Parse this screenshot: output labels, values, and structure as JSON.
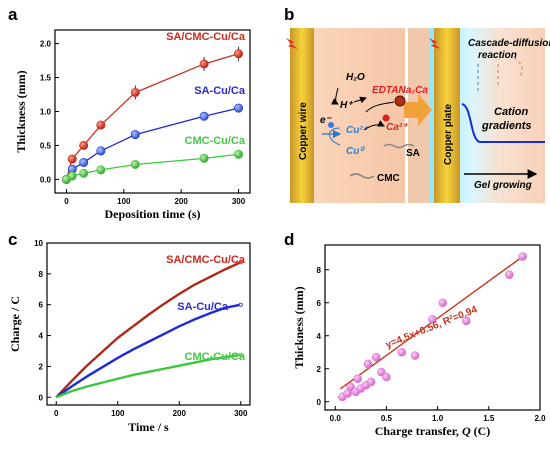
{
  "panels": {
    "a": "a",
    "b": "b",
    "c": "c",
    "d": "d"
  },
  "chart_data": [
    {
      "panel": "a",
      "type": "scatter",
      "xlabel": "Deposition time (s)",
      "ylabel": "Thickness (mm)",
      "xlim": [
        -20,
        320
      ],
      "ylim": [
        -0.2,
        2.2
      ],
      "xticks": [
        0,
        100,
        200,
        300
      ],
      "yticks": [
        0.0,
        0.5,
        1.0,
        1.5,
        2.0
      ],
      "yticklabels": [
        "0.0",
        "0.5",
        "1.0",
        "1.5",
        "2.0"
      ],
      "series": [
        {
          "name": "SA/CMC-Cu/Ca",
          "color": "#c8321e",
          "annotation_color": "#d0281e",
          "x": [
            0,
            10,
            30,
            60,
            120,
            240,
            300
          ],
          "y": [
            0.0,
            0.3,
            0.5,
            0.8,
            1.28,
            1.7,
            1.85
          ]
        },
        {
          "name": "SA-Cu/Ca",
          "color": "#1a2bd6",
          "annotation_color": "#2a2ad8",
          "x": [
            0,
            10,
            30,
            60,
            120,
            240,
            300
          ],
          "y": [
            0.0,
            0.15,
            0.25,
            0.42,
            0.66,
            0.93,
            1.05
          ]
        },
        {
          "name": "CMC-Cu/Ca",
          "color": "#3cc83c",
          "annotation_color": "#44c844",
          "x": [
            0,
            10,
            30,
            60,
            120,
            240,
            300
          ],
          "y": [
            0.0,
            0.05,
            0.09,
            0.14,
            0.22,
            0.31,
            0.37
          ]
        }
      ]
    },
    {
      "panel": "c",
      "type": "line",
      "xlabel": "Time / s",
      "ylabel": "Charge / C",
      "xlim": [
        -15,
        315
      ],
      "ylim": [
        -0.5,
        10
      ],
      "xticks": [
        0,
        100,
        200,
        300
      ],
      "yticks": [
        0,
        2,
        4,
        6,
        8,
        10
      ],
      "series": [
        {
          "name": "SA/CMC-Cu/Ca",
          "color": "#b02818",
          "annotation_color": "#d0281e",
          "x": [
            0,
            25,
            50,
            75,
            100,
            125,
            150,
            175,
            200,
            225,
            250,
            275,
            300
          ],
          "y": [
            0.0,
            1.05,
            2.05,
            2.95,
            3.85,
            4.6,
            5.35,
            6.05,
            6.7,
            7.3,
            7.8,
            8.3,
            8.75
          ]
        },
        {
          "name": "SA-Cu/Ca",
          "color": "#1a2bd6",
          "annotation_color": "#2a2ad8",
          "x": [
            0,
            25,
            50,
            75,
            100,
            125,
            150,
            175,
            200,
            225,
            250,
            275,
            300
          ],
          "y": [
            0.0,
            0.7,
            1.35,
            1.95,
            2.55,
            3.1,
            3.6,
            4.1,
            4.6,
            5.05,
            5.45,
            5.8,
            6.0
          ]
        },
        {
          "name": "CMC-Cu/Ca",
          "color": "#3cc83c",
          "annotation_color": "#44c844",
          "x": [
            0,
            25,
            50,
            75,
            100,
            125,
            150,
            175,
            200,
            225,
            250,
            275,
            300
          ],
          "y": [
            0.0,
            0.4,
            0.7,
            0.95,
            1.2,
            1.45,
            1.65,
            1.85,
            2.05,
            2.25,
            2.45,
            2.6,
            2.75
          ]
        }
      ]
    },
    {
      "panel": "d",
      "type": "scatter",
      "xlabel_main": "Charge transfer, ",
      "xlabel_var": "Q",
      "xlabel_unit": " (C)",
      "ylabel": "Thickness (mm)",
      "xlim": [
        -0.1,
        2.0
      ],
      "ylim": [
        -0.5,
        9.5
      ],
      "xticks": [
        0.0,
        0.5,
        1.0,
        1.5,
        2.0
      ],
      "xticklabels": [
        "0.0",
        "0.5",
        "1.0",
        "1.5",
        "2.0"
      ],
      "yticks": [
        0,
        2,
        4,
        6,
        8
      ],
      "annotation": "y=4.5x+0.56,  R²=0.94",
      "fit": {
        "slope": 4.5,
        "intercept": 0.56,
        "x_range": [
          0.05,
          1.85
        ],
        "color": "#c8321e"
      },
      "marker_color": "#e07ad8",
      "points": {
        "x": [
          0.07,
          0.12,
          0.15,
          0.2,
          0.22,
          0.25,
          0.3,
          0.32,
          0.35,
          0.4,
          0.45,
          0.5,
          0.65,
          0.78,
          0.95,
          1.05,
          1.28,
          1.7,
          1.83
        ],
        "y": [
          0.3,
          0.5,
          0.9,
          0.6,
          1.4,
          0.8,
          1.0,
          2.3,
          1.2,
          2.7,
          1.8,
          1.5,
          3.0,
          2.8,
          5.0,
          6.0,
          4.9,
          7.7,
          8.8
        ]
      }
    }
  ],
  "diagram_b": {
    "label_copper_wire": "Copper wire",
    "label_copper_plate": "Copper plate",
    "h2o": "H₂O",
    "hplus": "H⁺",
    "eminus": "e⁻",
    "cu2plus": "Cu²⁺",
    "cu0": "Cu⁰",
    "edta": "EDTANa₂Ca",
    "ca2plus": "Ca²⁺",
    "sa": "SA",
    "cmc": "CMC",
    "cascade1": "Cascade-diffusion",
    "cascade2": "reaction",
    "cation1": "Cation",
    "cation2": "gradients",
    "gel": "Gel growing"
  }
}
